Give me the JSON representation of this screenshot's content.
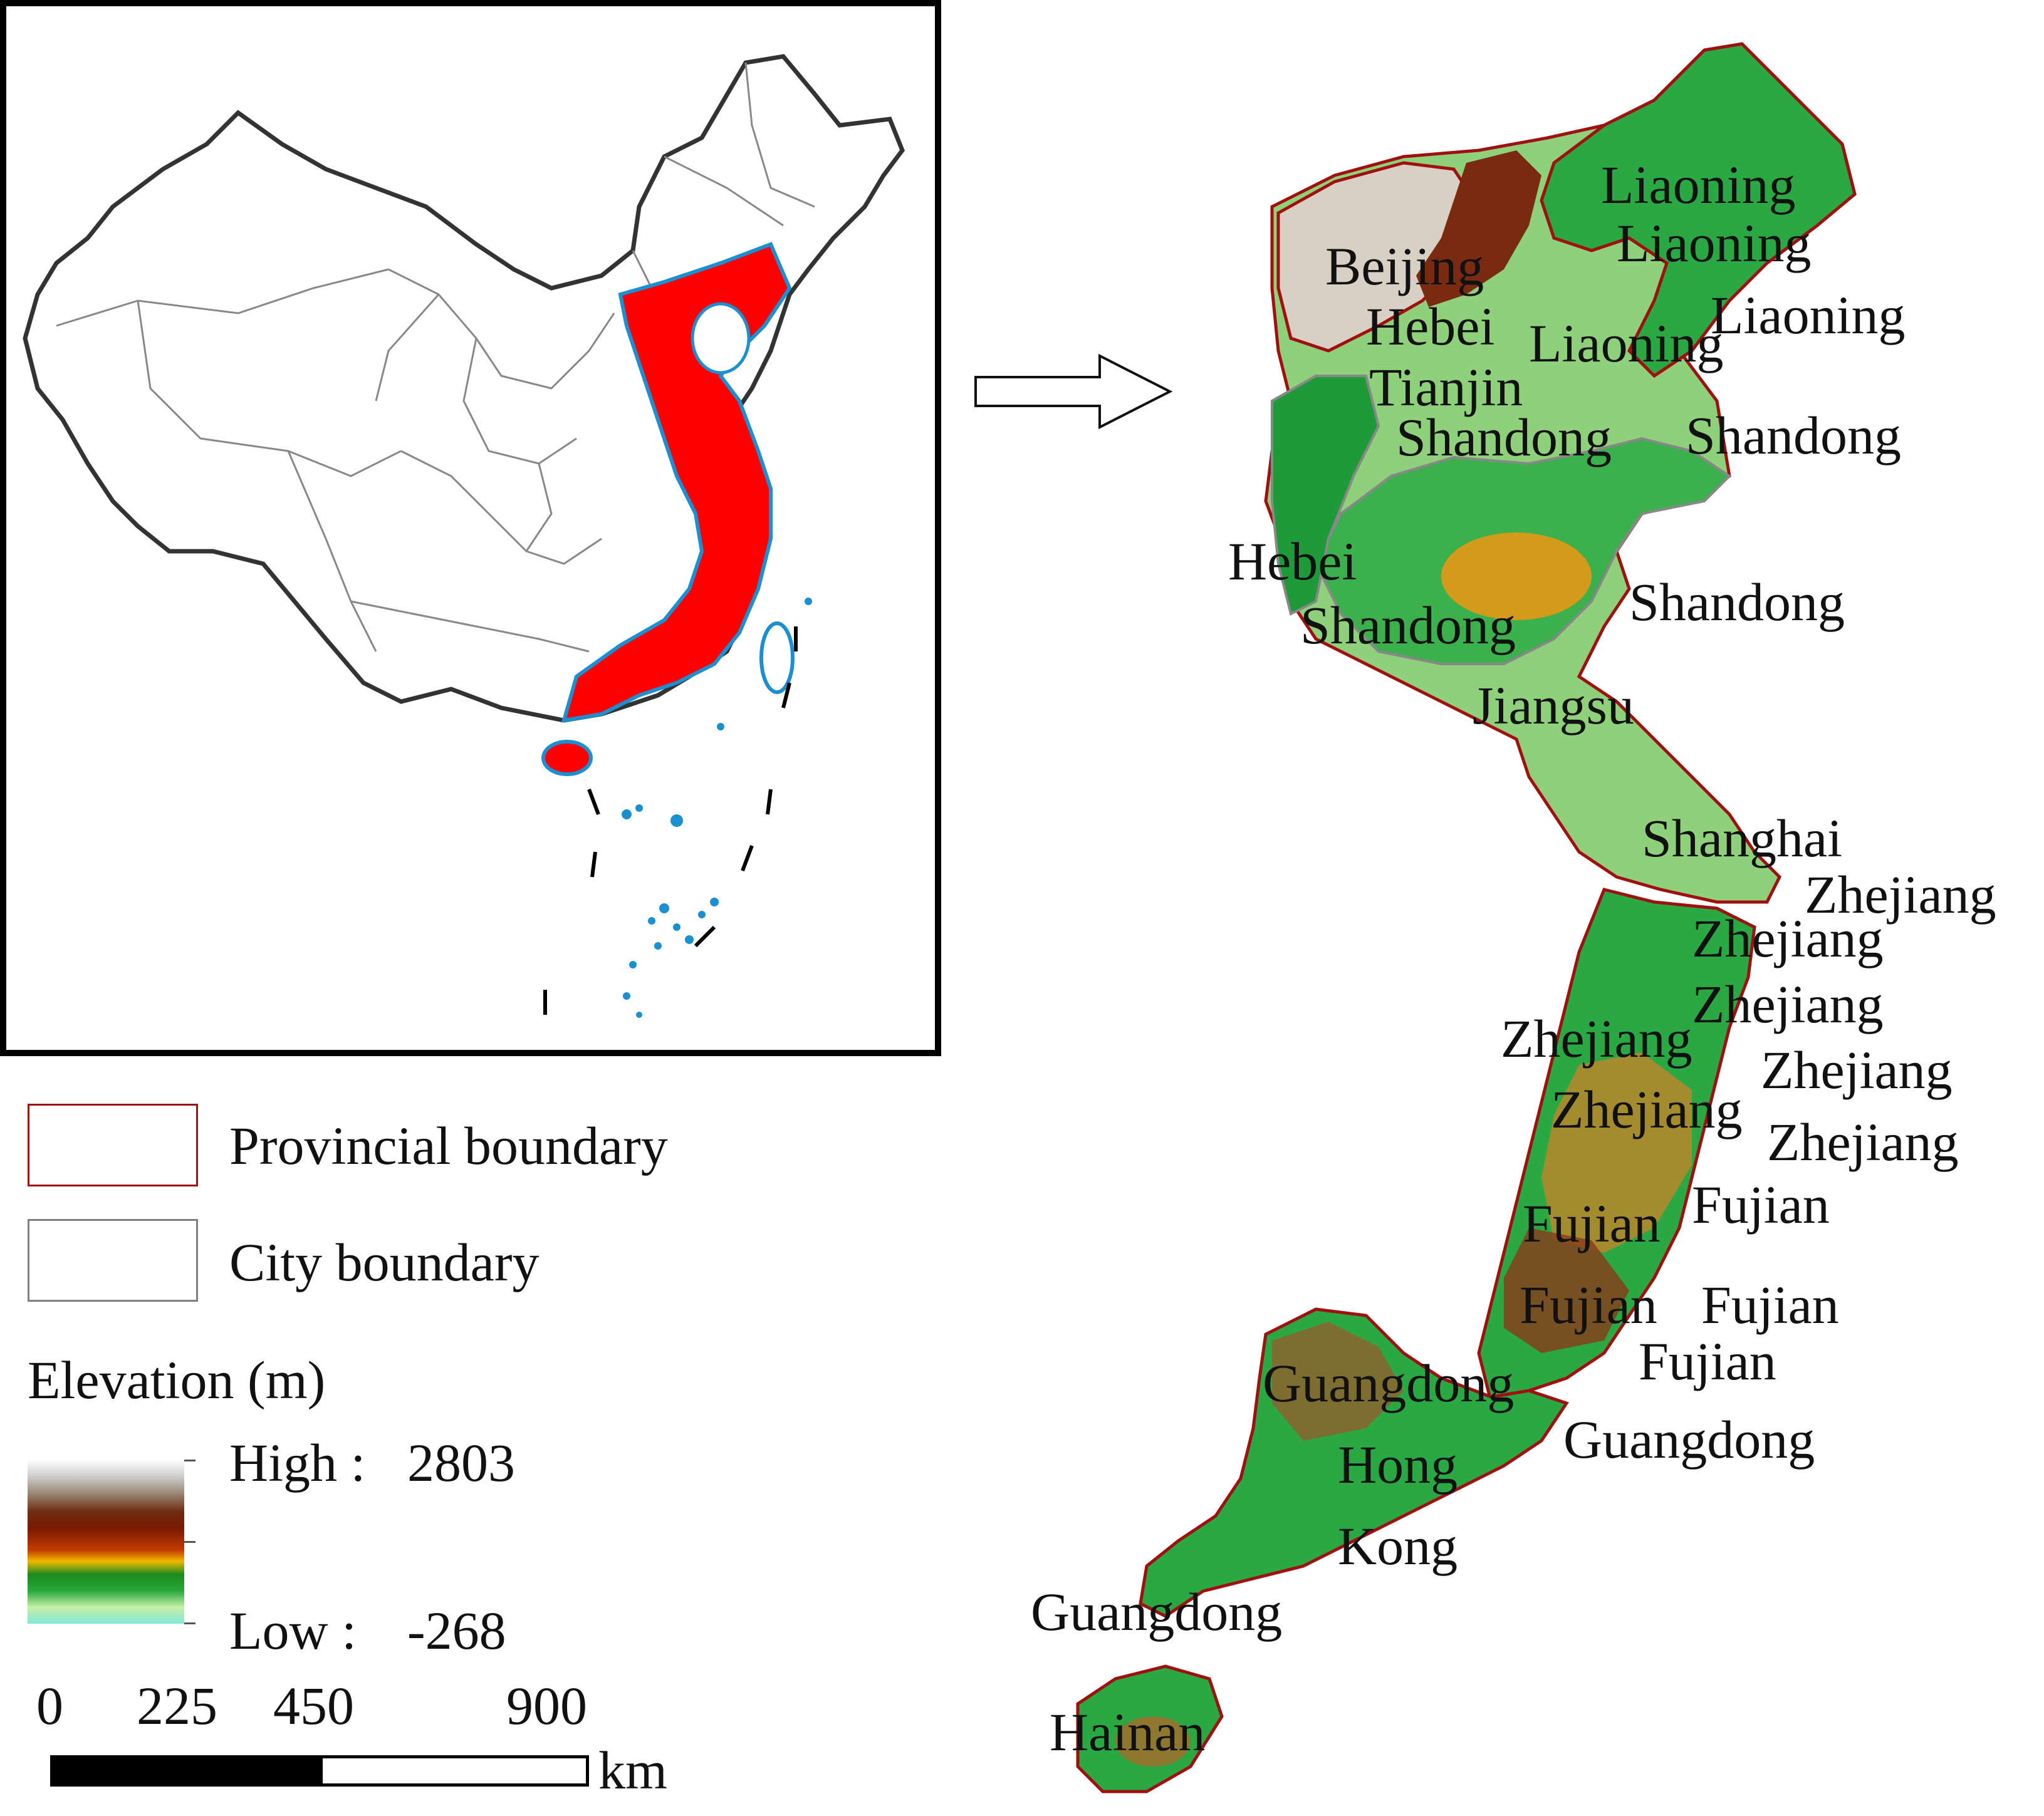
{
  "legend": {
    "items": [
      {
        "label": "Provincial boundary",
        "color": "#a01010"
      },
      {
        "label": "City boundary",
        "color": "#7f7f7f"
      }
    ],
    "elevation_title": "Elevation (m)",
    "high_label": "High :",
    "high_value": "2803",
    "low_label": "Low  :",
    "low_value": "-268"
  },
  "scale_bar": {
    "ticks": [
      "0",
      "225",
      "450",
      "900"
    ],
    "unit": "km"
  },
  "map_labels": [
    "Liaoning",
    "Liaoning",
    "Liaoning",
    "Liaoning",
    "Beijing",
    "Hebei",
    "Tianjin",
    "Shandong",
    "Shandong",
    "Hebei",
    "Shandong",
    "Shandong",
    "Jiangsu",
    "Shanghai",
    "Zhejiang",
    "Zhejiang",
    "Zhejiang",
    "Zhejiang",
    "Zhejiang",
    "Zhejiang",
    "Zhejiang",
    "Fujian",
    "Fujian",
    "Fujian",
    "Fujian",
    "Fujian",
    "Guangdong",
    "Guangdong",
    "Hong",
    "Kong",
    "Guangdong",
    "Hainan"
  ],
  "colors": {
    "highlight": "#ff0000",
    "coast": "#1a8fd1",
    "provincial": "#a01010",
    "city": "#7f7f7f",
    "lowland": "#8fd07a",
    "green": "#2aa843",
    "ochre": "#e0a000"
  }
}
